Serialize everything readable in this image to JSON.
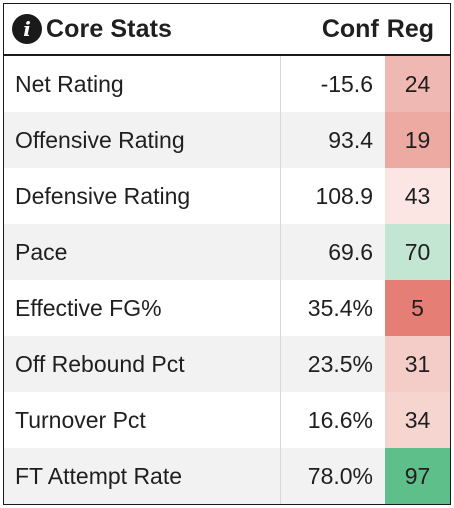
{
  "header": {
    "icon": "info-icon",
    "icon_glyph": "i",
    "title": "Core Stats",
    "col_conf": "Conf",
    "col_reg": "Reg"
  },
  "rows": [
    {
      "label": "Net Rating",
      "value": "-15.6",
      "rank": "24",
      "rank_color": "#f0b8b2"
    },
    {
      "label": "Offensive Rating",
      "value": "93.4",
      "rank": "19",
      "rank_color": "#ecaaa3"
    },
    {
      "label": "Defensive Rating",
      "value": "108.9",
      "rank": "43",
      "rank_color": "#fbe6e4"
    },
    {
      "label": "Pace",
      "value": "69.6",
      "rank": "70",
      "rank_color": "#c2e6d2"
    },
    {
      "label": "Effective FG%",
      "value": "35.4%",
      "rank": "5",
      "rank_color": "#e57f76"
    },
    {
      "label": "Off Rebound Pct",
      "value": "23.5%",
      "rank": "31",
      "rank_color": "#f4cdc8"
    },
    {
      "label": "Turnover Pct",
      "value": "16.6%",
      "rank": "34",
      "rank_color": "#f6d5d1"
    },
    {
      "label": "FT Attempt Rate",
      "value": "78.0%",
      "rank": "97",
      "rank_color": "#5fbf8a"
    }
  ]
}
